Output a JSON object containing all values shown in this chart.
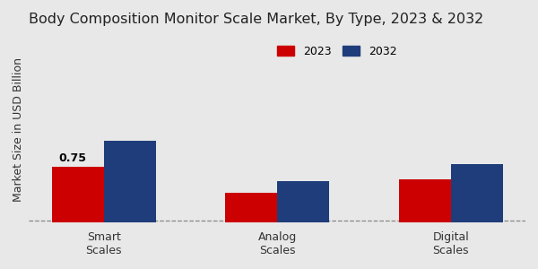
{
  "title": "Body Composition Monitor Scale Market, By Type, 2023 & 2032",
  "ylabel": "Market Size in USD Billion",
  "categories": [
    "Smart\nScales",
    "Analog\nScales",
    "Digital\nScales"
  ],
  "values_2023": [
    0.75,
    0.4,
    0.58
  ],
  "values_2032": [
    1.1,
    0.55,
    0.78
  ],
  "color_2023": "#cc0000",
  "color_2032": "#1f3d7a",
  "bar_width": 0.3,
  "annotation": "0.75",
  "ylim": [
    0,
    2.5
  ],
  "dashed_line_y": 0.03,
  "background_color": "#e8e8e8",
  "legend_labels": [
    "2023",
    "2032"
  ],
  "title_fontsize": 11.5,
  "label_fontsize": 9,
  "tick_fontsize": 9
}
